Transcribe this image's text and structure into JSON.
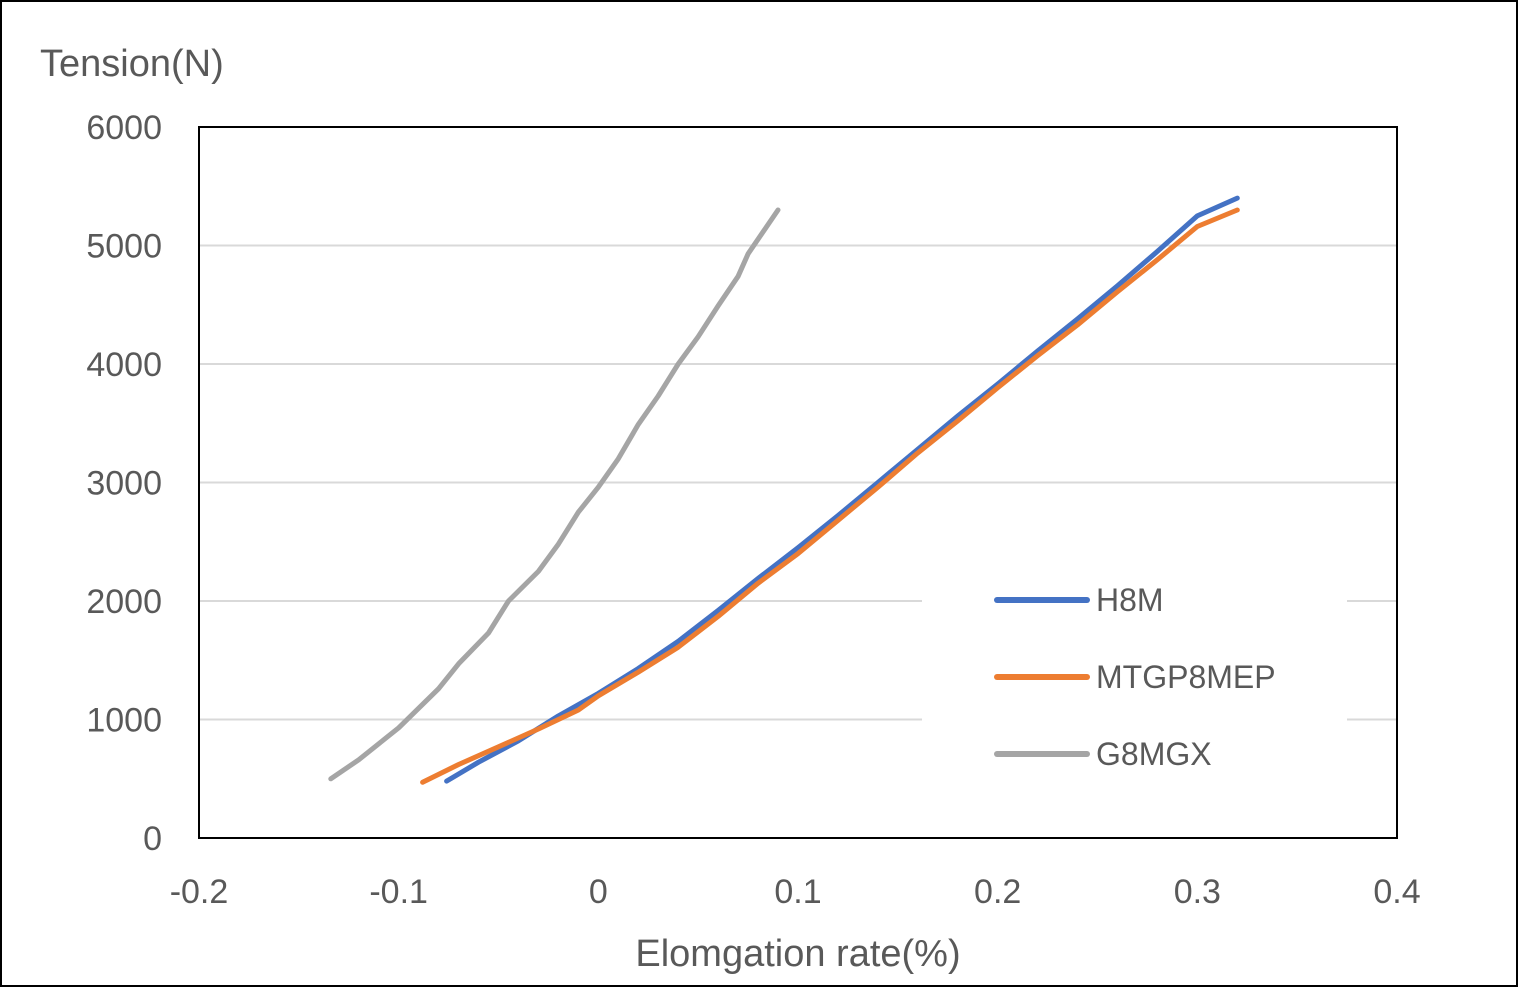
{
  "chart_data": {
    "type": "line",
    "title": "",
    "xlabel": "Elomgation rate(%)",
    "ylabel": "Tension(N)",
    "xlim": [
      -0.2,
      0.4
    ],
    "ylim": [
      0,
      6000
    ],
    "x_ticks": [
      -0.2,
      -0.1,
      0,
      0.1,
      0.2,
      0.3,
      0.4
    ],
    "x_tick_labels": [
      "-0.2",
      "-0.1",
      "0",
      "0.1",
      "0.2",
      "0.3",
      "0.4"
    ],
    "y_ticks": [
      0,
      1000,
      2000,
      3000,
      4000,
      5000,
      6000
    ],
    "y_tick_labels": [
      "0",
      "1000",
      "2000",
      "3000",
      "4000",
      "5000",
      "6000"
    ],
    "grid": true,
    "legend_position": "right",
    "series": [
      {
        "name": "H8M",
        "color": "#4472c4",
        "points": [
          [
            -0.076,
            480
          ],
          [
            -0.06,
            640
          ],
          [
            -0.04,
            820
          ],
          [
            -0.02,
            1030
          ],
          [
            0,
            1220
          ],
          [
            0.02,
            1430
          ],
          [
            0.04,
            1660
          ],
          [
            0.06,
            1920
          ],
          [
            0.08,
            2190
          ],
          [
            0.1,
            2450
          ],
          [
            0.12,
            2720
          ],
          [
            0.14,
            3000
          ],
          [
            0.16,
            3280
          ],
          [
            0.18,
            3560
          ],
          [
            0.2,
            3830
          ],
          [
            0.22,
            4110
          ],
          [
            0.24,
            4380
          ],
          [
            0.26,
            4660
          ],
          [
            0.28,
            4950
          ],
          [
            0.3,
            5250
          ],
          [
            0.32,
            5400
          ]
        ]
      },
      {
        "name": "MTGP8MEP",
        "color": "#ed7d31",
        "points": [
          [
            -0.088,
            470
          ],
          [
            -0.07,
            620
          ],
          [
            -0.05,
            770
          ],
          [
            -0.03,
            920
          ],
          [
            -0.01,
            1080
          ],
          [
            0,
            1200
          ],
          [
            0.02,
            1400
          ],
          [
            0.04,
            1610
          ],
          [
            0.06,
            1870
          ],
          [
            0.08,
            2150
          ],
          [
            0.1,
            2400
          ],
          [
            0.12,
            2680
          ],
          [
            0.14,
            2960
          ],
          [
            0.16,
            3250
          ],
          [
            0.18,
            3520
          ],
          [
            0.2,
            3800
          ],
          [
            0.22,
            4070
          ],
          [
            0.24,
            4330
          ],
          [
            0.26,
            4610
          ],
          [
            0.28,
            4880
          ],
          [
            0.3,
            5160
          ],
          [
            0.32,
            5300
          ]
        ]
      },
      {
        "name": "G8MGX",
        "color": "#a5a5a5",
        "points": [
          [
            -0.134,
            500
          ],
          [
            -0.12,
            660
          ],
          [
            -0.1,
            930
          ],
          [
            -0.08,
            1260
          ],
          [
            -0.07,
            1470
          ],
          [
            -0.055,
            1730
          ],
          [
            -0.045,
            2000
          ],
          [
            -0.03,
            2250
          ],
          [
            -0.02,
            2480
          ],
          [
            -0.01,
            2750
          ],
          [
            0,
            2960
          ],
          [
            0.01,
            3200
          ],
          [
            0.02,
            3490
          ],
          [
            0.03,
            3730
          ],
          [
            0.04,
            4000
          ],
          [
            0.05,
            4230
          ],
          [
            0.06,
            4490
          ],
          [
            0.07,
            4740
          ],
          [
            0.075,
            4930
          ],
          [
            0.09,
            5300
          ]
        ]
      }
    ]
  }
}
